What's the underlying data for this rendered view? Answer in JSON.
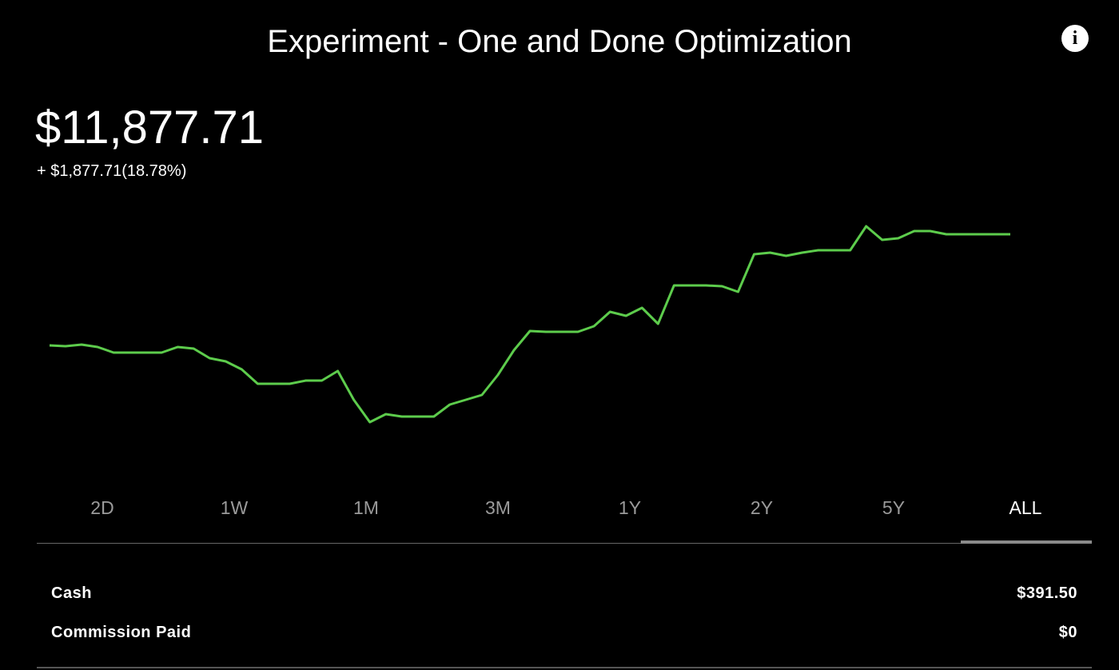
{
  "header": {
    "title": "Experiment - One and Done Optimization"
  },
  "balance": "$11,877.71",
  "change": "+ $1,877.71(18.78%)",
  "chart_data": {
    "type": "line",
    "color": "#5dcc4c",
    "values": [
      10000,
      9986,
      10014,
      9973,
      9878,
      9878,
      9878,
      9878,
      9973,
      9946,
      9784,
      9730,
      9595,
      9352,
      9352,
      9352,
      9406,
      9406,
      9568,
      9081,
      8703,
      8838,
      8798,
      8798,
      8798,
      9000,
      9081,
      9162,
      9500,
      9919,
      10243,
      10230,
      10230,
      10230,
      10324,
      10567,
      10500,
      10635,
      10365,
      11013,
      11013,
      11013,
      11000,
      10905,
      11540,
      11567,
      11513,
      11567,
      11608,
      11608,
      11608,
      12013,
      11783,
      11810,
      11932,
      11932,
      11878,
      11878,
      11878,
      11878,
      11877.71
    ]
  },
  "tabs": [
    "2D",
    "1W",
    "1M",
    "3M",
    "1Y",
    "2Y",
    "5Y",
    "ALL"
  ],
  "rows": [
    [
      "Cash",
      "$391.50"
    ],
    [
      "Commission Paid",
      "$0"
    ]
  ]
}
